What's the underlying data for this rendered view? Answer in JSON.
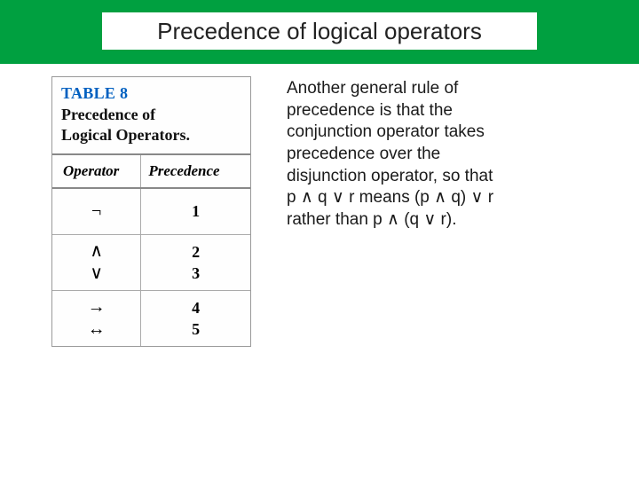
{
  "header": {
    "band_color": "#00a040",
    "title": "Precedence of logical operators"
  },
  "table": {
    "label": "TABLE 8",
    "title_line1": "Precedence of",
    "title_line2": "Logical Operators.",
    "head_op": "Operator",
    "head_prec": "Precedence",
    "rows": [
      {
        "ops": [
          "¬"
        ],
        "precs": [
          "1"
        ]
      },
      {
        "ops": [
          "∧",
          "∨"
        ],
        "precs": [
          "2",
          "3"
        ]
      },
      {
        "ops": [
          "→",
          "↔"
        ],
        "precs": [
          "4",
          "5"
        ]
      }
    ]
  },
  "paragraph": {
    "l1": "Another general rule of",
    "l2": "precedence is that the",
    "l3": "conjunction operator takes",
    "l4": "precedence over the",
    "l5": "disjunction operator, so that",
    "l6": "p ∧ q ∨ r means (p ∧ q) ∨ r",
    "l7": "rather than p ∧ (q ∨ r)."
  }
}
